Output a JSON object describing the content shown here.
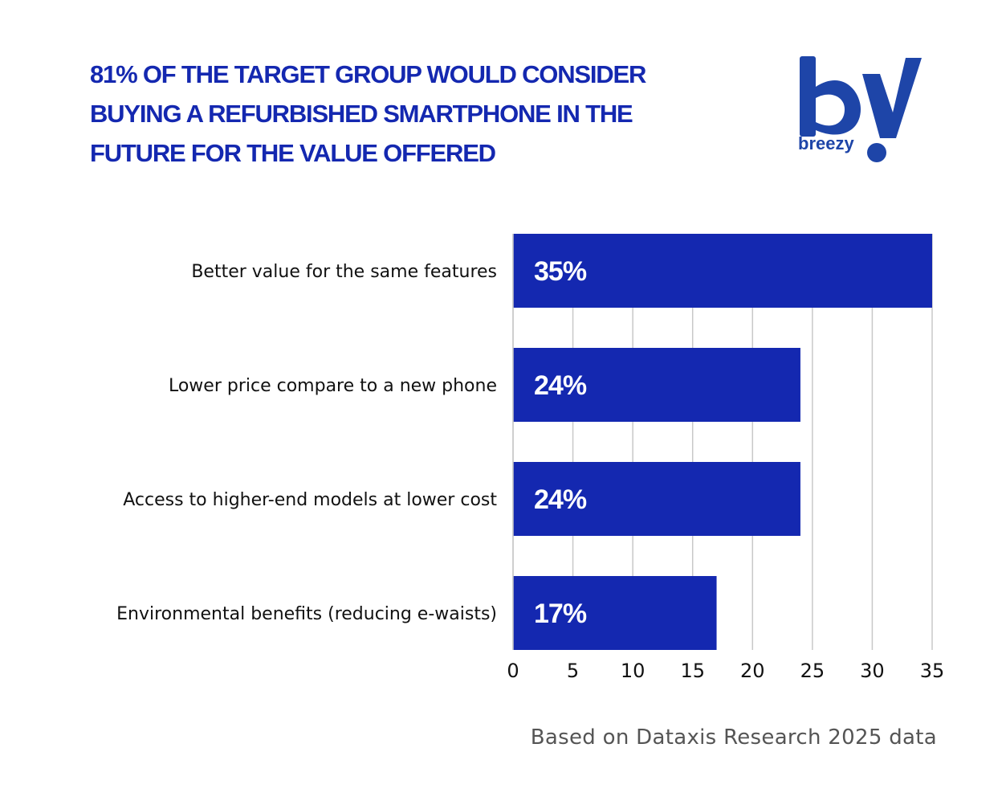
{
  "headline": {
    "line1_bold_a": "81%",
    "line1_regular": " OF THE TARGET GROUP ",
    "line1_bold_b": "WOULD CONSIDER",
    "line2_bold": "BUYING A REFURBISHED SMARTPHONE",
    "line2_regular": " IN THE",
    "line3_regular": "FUTURE  FOR THE VALUE OFFERED"
  },
  "logo": {
    "wordmark": "breezy",
    "icon": "breezy-by-logo-icon"
  },
  "colors": {
    "bar": "#1428b0",
    "headline": "#1428b0",
    "grid": "#c8c8c8",
    "label": "#111111",
    "source": "#555555"
  },
  "chart_data": {
    "type": "bar",
    "orientation": "horizontal",
    "categories": [
      "Better value for the same features",
      "Lower price compare to a new phone",
      "Access to higher-end models at lower cost",
      "Environmental benefits (reducing e-waists)"
    ],
    "values": [
      35,
      24,
      24,
      17
    ],
    "data_labels": [
      "35%",
      "24%",
      "24%",
      "17%"
    ],
    "xticks": [
      "0",
      "5",
      "10",
      "15",
      "20",
      "25",
      "30",
      "35"
    ],
    "xlim": [
      0,
      35
    ],
    "grid": true
  },
  "source": "Based on Dataxis Research 2025 data"
}
